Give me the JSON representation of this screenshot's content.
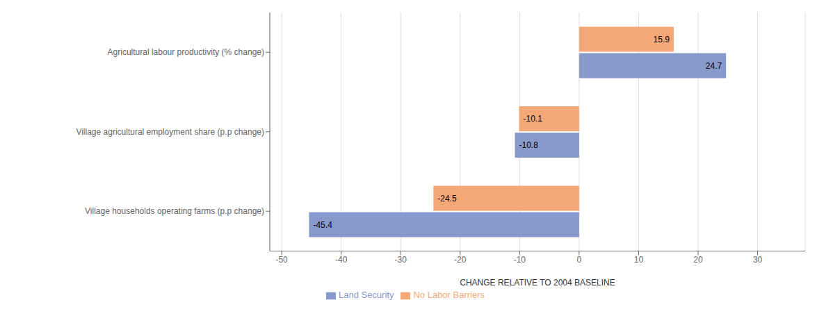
{
  "chart_data": {
    "type": "bar",
    "orientation": "horizontal",
    "categories": [
      "Agricultural labour productivity (% change)",
      "Village agricultural employment share (p.p change)",
      "Village households operating farms (p.p change)"
    ],
    "series": [
      {
        "name": "No Labor Barriers",
        "color": "#F4A878",
        "values": [
          15.9,
          -10.1,
          -24.5
        ]
      },
      {
        "name": "Land Security",
        "color": "#8899CC",
        "values": [
          24.7,
          -10.8,
          -45.4
        ]
      }
    ],
    "xlabel": "CHANGE RELATIVE TO 2004 BASELINE",
    "xlim": [
      -52,
      38
    ],
    "xticks": [
      -50,
      -40,
      -30,
      -20,
      -10,
      0,
      10,
      20,
      30
    ],
    "grid": true,
    "data_labels": true,
    "legend": "bottom"
  }
}
